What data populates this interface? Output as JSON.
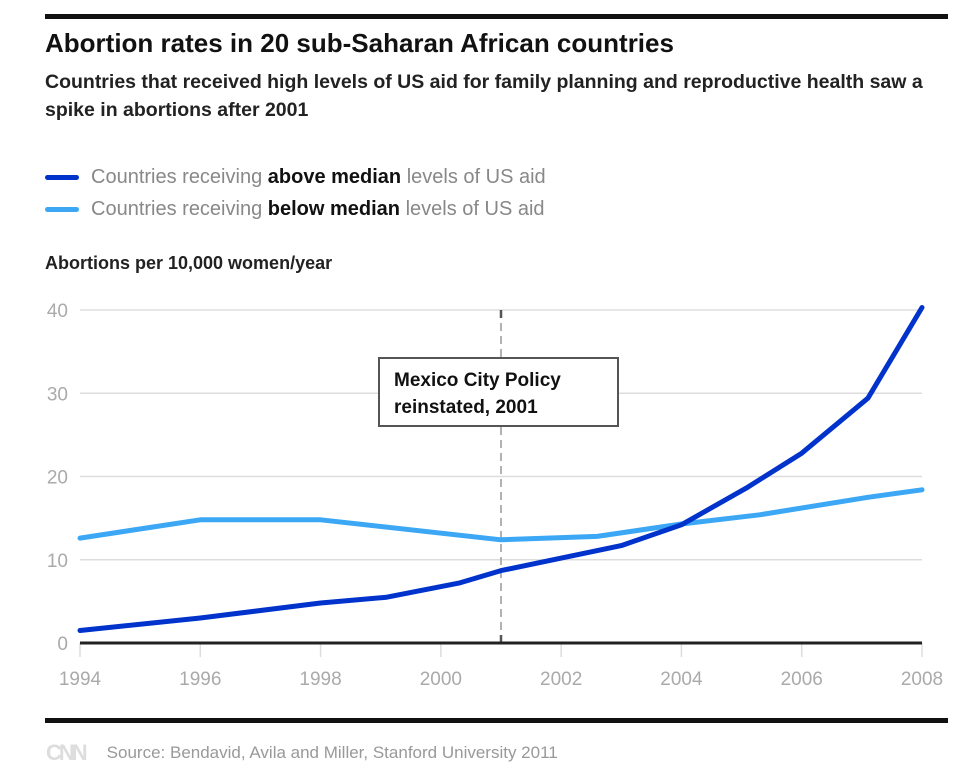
{
  "header": {
    "title": "Abortion rates in 20 sub-Saharan African countries",
    "subtitle": "Countries that received high levels of US aid for family planning and reproductive health saw a spike in abortions after 2001"
  },
  "legend": [
    {
      "pre": "Countries receiving ",
      "bold": "above median",
      "post": " levels of US aid",
      "color": "#0033cc"
    },
    {
      "pre": "Countries receiving ",
      "bold": "below median",
      "post": " levels of US aid",
      "color": "#3ba7f5"
    }
  ],
  "chart_data": {
    "type": "line",
    "title": "Abortion rates in 20 sub-Saharan African countries",
    "ylabel": "Abortions per 10,000 women/year",
    "xlabel": "",
    "xlim": [
      1994,
      2008
    ],
    "ylim": [
      0,
      40
    ],
    "xticks": [
      "1994",
      "1996",
      "1998",
      "2000",
      "2002",
      "2004",
      "2006",
      "2008"
    ],
    "yticks": [
      "0",
      "10",
      "20",
      "30",
      "40"
    ],
    "grid": true,
    "legend_placement": "top-left",
    "series": [
      {
        "name": "Countries receiving above median levels of US aid",
        "color": "#0033cc",
        "x": [
          1994,
          1996,
          1998,
          1999.1,
          2000.3,
          2001,
          2003,
          2004,
          2005.1,
          2006,
          2007.1,
          2008
        ],
        "y": [
          1.5,
          3.0,
          4.8,
          5.5,
          7.2,
          8.7,
          11.7,
          14.2,
          18.7,
          22.8,
          29.4,
          40.3
        ]
      },
      {
        "name": "Countries receiving below median levels of US aid",
        "color": "#3ba7f5",
        "x": [
          1994,
          1996,
          1998,
          2001,
          2002.6,
          2004,
          2005.3,
          2007.1,
          2008
        ],
        "y": [
          12.6,
          14.8,
          14.8,
          12.4,
          12.8,
          14.3,
          15.4,
          17.5,
          18.4
        ]
      }
    ],
    "annotation": {
      "x": 2001,
      "line1": "Mexico City Policy",
      "line2": "reinstated, 2001"
    }
  },
  "footer": {
    "logo": "CNN",
    "source": "Source: Bendavid, Avila and Miller, Stanford University 2011"
  }
}
